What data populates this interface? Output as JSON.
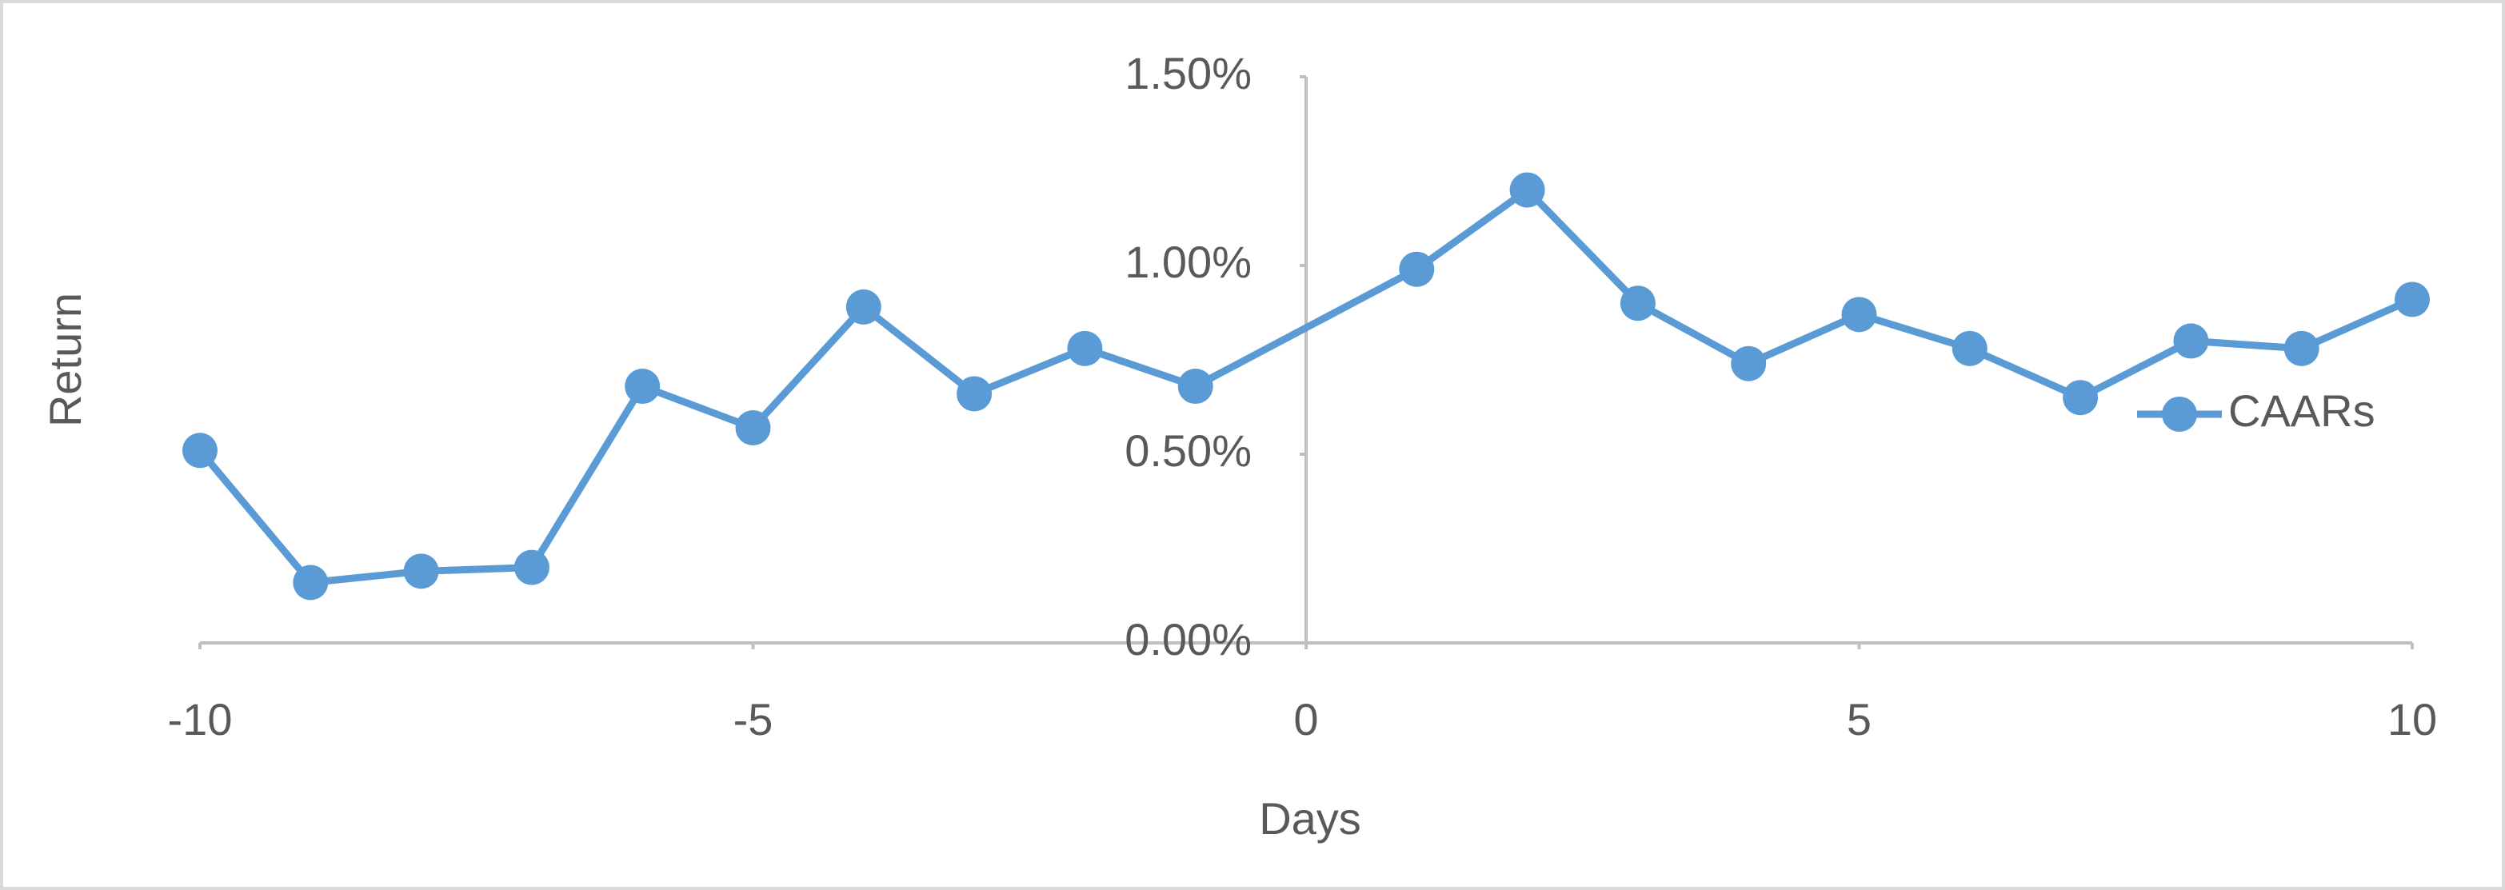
{
  "chart_data": {
    "type": "line",
    "x_label": "Days",
    "y_label": "Return",
    "x": [
      -10,
      -9,
      -8,
      -7,
      -6,
      -5,
      -4,
      -3,
      -2,
      -1,
      1,
      2,
      3,
      4,
      5,
      6,
      7,
      8,
      9,
      10
    ],
    "series": [
      {
        "name": "CAARs",
        "color": "#5b9bd5",
        "values": [
          0.51,
          0.16,
          0.19,
          0.2,
          0.68,
          0.57,
          0.89,
          0.66,
          0.78,
          0.68,
          0.99,
          1.2,
          0.9,
          0.74,
          0.87,
          0.78,
          0.65,
          0.8,
          0.78,
          0.91
        ]
      }
    ],
    "xlim": [
      -10,
      10
    ],
    "xticks": [
      -10,
      -5,
      0,
      5,
      10
    ],
    "ylim": [
      0,
      1.5
    ],
    "yticks": [
      {
        "value": 0,
        "label": "0.00%"
      },
      {
        "value": 0.5,
        "label": "0.50%"
      },
      {
        "value": 1,
        "label": "1.00%"
      },
      {
        "value": 1.5,
        "label": "1.50%"
      }
    ],
    "legend": "right",
    "markers": true
  }
}
